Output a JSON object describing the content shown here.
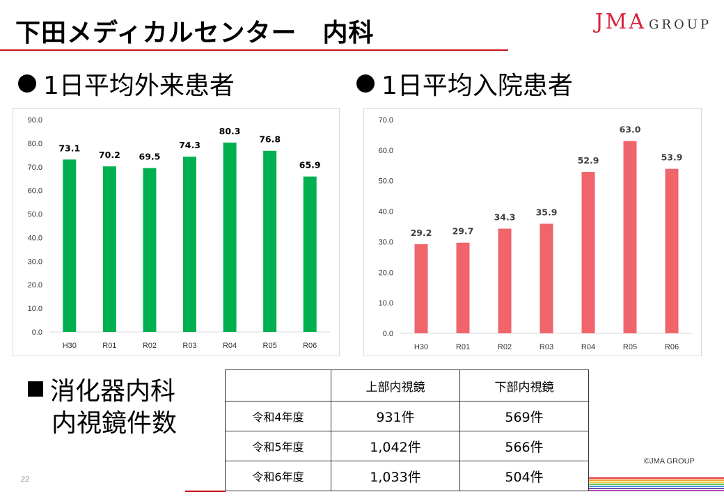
{
  "title": "下田メディカルセンター　内科",
  "logo": {
    "main": "JMA",
    "sub": "GROUP"
  },
  "left_heading": "1日平均外来患者",
  "right_heading": "1日平均入院患者",
  "section": {
    "line1": "消化器内科",
    "line2": "内視鏡件数"
  },
  "table": {
    "headers": [
      "",
      "上部内視鏡",
      "下部内視鏡"
    ],
    "rows": [
      {
        "label": "令和4年度",
        "upper": "931件",
        "lower": "569件"
      },
      {
        "label": "令和5年度",
        "upper": "1,042件",
        "lower": "566件"
      },
      {
        "label": "令和6年度",
        "upper": "1,033件",
        "lower": "504件"
      }
    ]
  },
  "copyright": "©JMA GROUP",
  "page_number": "22",
  "colors": {
    "accent": "#c8161d",
    "outpatient_bar": "#00b050",
    "inpatient_bar": "#f0646b"
  },
  "chart_data": [
    {
      "type": "bar",
      "categories": [
        "H30",
        "R01",
        "R02",
        "R03",
        "R04",
        "R05",
        "R06"
      ],
      "values": [
        73.1,
        70.2,
        69.5,
        74.3,
        80.3,
        76.8,
        65.9
      ],
      "ylim": [
        0,
        90
      ],
      "ytick_step": 10,
      "grid": false,
      "color": "#00b050",
      "label_color": "#000000"
    },
    {
      "type": "bar",
      "categories": [
        "H30",
        "R01",
        "R02",
        "R03",
        "R04",
        "R05",
        "R06"
      ],
      "values": [
        29.2,
        29.7,
        34.3,
        35.9,
        52.9,
        63.0,
        53.9
      ],
      "ylim": [
        0,
        70
      ],
      "ytick_step": 10,
      "grid": false,
      "color": "#f0646b",
      "label_color": "#404040"
    }
  ]
}
